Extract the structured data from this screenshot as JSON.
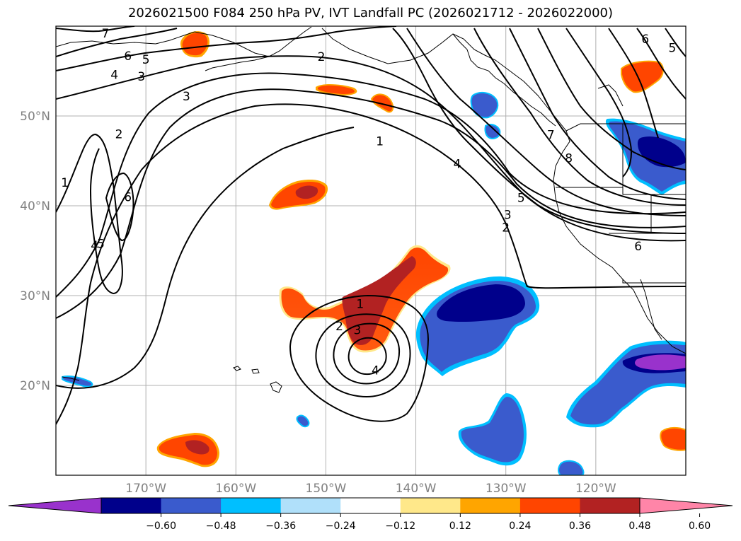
{
  "title": "2026021500 F084 250 hPa PV, IVT Landfall PC (2026021712 - 2026022000)",
  "map": {
    "lon_range": [
      -180,
      -110
    ],
    "lat_range": [
      10,
      60
    ],
    "lat_gridlines": [
      20,
      30,
      40,
      50
    ],
    "lon_gridlines": [
      -170,
      -160,
      -150,
      -140,
      -130,
      -120
    ],
    "lat_labels": [
      "20°N",
      "30°N",
      "40°N",
      "50°N"
    ],
    "lon_labels": [
      "170°W",
      "160°W",
      "150°W",
      "140°W",
      "130°W",
      "120°W"
    ]
  },
  "colorbar": {
    "colors": [
      "#9932cc",
      "#00008b",
      "#3a5bcd",
      "#00bfff",
      "#b0e0fa",
      "#ffffff",
      "#ffe88a",
      "#ffa500",
      "#ff4500",
      "#b22222",
      "#ff85a8"
    ],
    "tick_labels": [
      "−0.60",
      "−0.48",
      "−0.36",
      "−0.24",
      "−0.12",
      "0.12",
      "0.24",
      "0.36",
      "0.48",
      "0.60"
    ]
  },
  "contour_labels": [
    {
      "text": "7",
      "lon": -174.5,
      "lat": 59.2
    },
    {
      "text": "6",
      "lon": -172,
      "lat": 56.7
    },
    {
      "text": "5",
      "lon": -170,
      "lat": 56.3
    },
    {
      "text": "4",
      "lon": -173.5,
      "lat": 54.6
    },
    {
      "text": "3",
      "lon": -170.5,
      "lat": 54.4
    },
    {
      "text": "3",
      "lon": -165.5,
      "lat": 52.2
    },
    {
      "text": "2",
      "lon": -150.5,
      "lat": 56.6
    },
    {
      "text": "2",
      "lon": -173,
      "lat": 48
    },
    {
      "text": "6",
      "lon": -172,
      "lat": 41
    },
    {
      "text": "1",
      "lon": -179,
      "lat": 42.6
    },
    {
      "text": "4",
      "lon": -175.7,
      "lat": 35.6
    },
    {
      "text": "5",
      "lon": -175,
      "lat": 35.8
    },
    {
      "text": "1",
      "lon": -144,
      "lat": 47.2
    },
    {
      "text": "4",
      "lon": -135.4,
      "lat": 44.7
    },
    {
      "text": "7",
      "lon": -125,
      "lat": 47.9
    },
    {
      "text": "8",
      "lon": -123,
      "lat": 45.3
    },
    {
      "text": "5",
      "lon": -128.3,
      "lat": 40.9
    },
    {
      "text": "3",
      "lon": -129.8,
      "lat": 39
    },
    {
      "text": "2",
      "lon": -130,
      "lat": 37.6
    },
    {
      "text": "6",
      "lon": -115.3,
      "lat": 35.5
    },
    {
      "text": "6",
      "lon": -114.5,
      "lat": 58.6
    },
    {
      "text": "5",
      "lon": -111.5,
      "lat": 57.6
    },
    {
      "text": "1",
      "lon": -146.2,
      "lat": 29.1
    },
    {
      "text": "2",
      "lon": -148.5,
      "lat": 26.6
    },
    {
      "text": "3",
      "lon": -146.5,
      "lat": 26.2
    },
    {
      "text": "4",
      "lon": -144.5,
      "lat": 21.7
    }
  ]
}
